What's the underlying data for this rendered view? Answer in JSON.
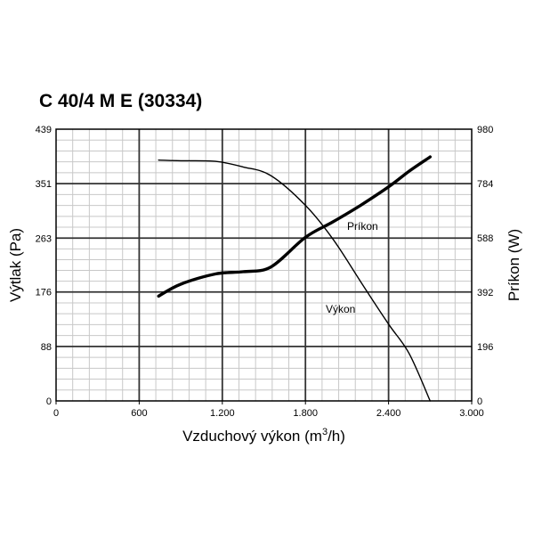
{
  "chart_data": {
    "type": "line",
    "title": "C 40/4 M E (30334)",
    "xlabel": "Vzduchový výkon (m",
    "xlabel_sup": "3",
    "xlabel_suffix": "/h)",
    "ylabel": "Výtlak (Pa)",
    "y2label": "Príkon (W)",
    "xlim": [
      0,
      3000
    ],
    "ylim": [
      0,
      439
    ],
    "y2lim": [
      0,
      980
    ],
    "x_ticks": [
      0,
      600,
      1200,
      1800,
      2400,
      3000
    ],
    "x_tick_labels": [
      "0",
      "600",
      "1.200",
      "1.800",
      "2.400",
      "3.000"
    ],
    "y_ticks": [
      0,
      88,
      176,
      263,
      351,
      439
    ],
    "y_tick_labels": [
      "0",
      "88",
      "176",
      "263",
      "351",
      "439"
    ],
    "y2_ticks": [
      0,
      196,
      392,
      588,
      784,
      980
    ],
    "y2_tick_labels": [
      "0",
      "196",
      "392",
      "588",
      "784",
      "980"
    ],
    "grid": true,
    "series": [
      {
        "name": "Výkon",
        "axis": "left",
        "line": "thin",
        "x": [
          740,
          900,
          1150,
          1350,
          1550,
          1800,
          2000,
          2200,
          2400,
          2550,
          2700
        ],
        "y": [
          389,
          388,
          387,
          378,
          364,
          316,
          261,
          192,
          124,
          76,
          0
        ]
      },
      {
        "name": "Príkon",
        "axis": "right",
        "line": "thick",
        "x": [
          740,
          900,
          1150,
          1350,
          1550,
          1800,
          2000,
          2200,
          2400,
          2550,
          2700
        ],
        "y": [
          378,
          421,
          458,
          466,
          483,
          590,
          646,
          706,
          772,
          829,
          880
        ]
      }
    ]
  }
}
